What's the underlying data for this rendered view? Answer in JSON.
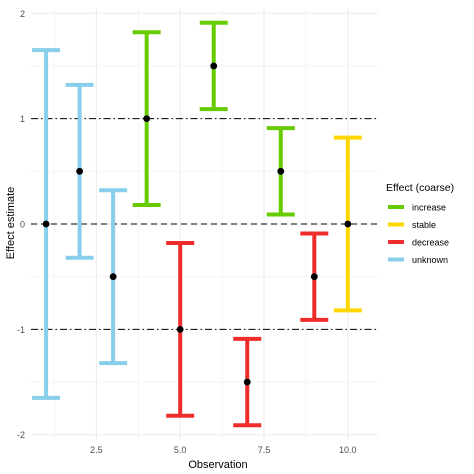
{
  "chart_data": {
    "type": "errorbar",
    "xlabel": "Observation",
    "ylabel": "Effect estimate",
    "xlim": [
      0.55,
      10.9
    ],
    "ylim": [
      -2.05,
      2.05
    ],
    "x_ticks": [
      2.5,
      5.0,
      7.5,
      10.0
    ],
    "x_tick_labels": [
      "2.5",
      "5.0",
      "7.5",
      "10.0"
    ],
    "y_ticks": [
      -2,
      -1,
      0,
      1,
      2
    ],
    "y_tick_labels": [
      "-2",
      "-1",
      "0",
      "1",
      "2"
    ],
    "grid": true,
    "reference_lines": [
      {
        "y": 0,
        "style": "dashed",
        "color": "#000000"
      },
      {
        "y": 1,
        "style": "dotdash",
        "color": "#000000"
      },
      {
        "y": -1,
        "style": "dotdash",
        "color": "#000000"
      }
    ],
    "legend": {
      "title": "Effect (coarse)",
      "position": "right",
      "entries": [
        {
          "label": "increase",
          "color": "#66cc00"
        },
        {
          "label": "stable",
          "color": "#ffd700"
        },
        {
          "label": "decrease",
          "color": "#ee2c2c"
        },
        {
          "label": "unknown",
          "color": "#87ceeb"
        }
      ]
    },
    "points": [
      {
        "x": 1,
        "y": 0.0,
        "lower": -1.65,
        "upper": 1.65,
        "category": "unknown"
      },
      {
        "x": 2,
        "y": 0.5,
        "lower": -0.32,
        "upper": 1.32,
        "category": "unknown"
      },
      {
        "x": 3,
        "y": -0.5,
        "lower": -1.32,
        "upper": 0.32,
        "category": "unknown"
      },
      {
        "x": 4,
        "y": 1.0,
        "lower": 0.18,
        "upper": 1.82,
        "category": "increase"
      },
      {
        "x": 5,
        "y": -1.0,
        "lower": -1.82,
        "upper": -0.18,
        "category": "decrease"
      },
      {
        "x": 6,
        "y": 1.5,
        "lower": 1.09,
        "upper": 1.91,
        "category": "increase"
      },
      {
        "x": 7,
        "y": -1.5,
        "lower": -1.91,
        "upper": -1.09,
        "category": "decrease"
      },
      {
        "x": 8,
        "y": 0.5,
        "lower": 0.09,
        "upper": 0.91,
        "category": "increase"
      },
      {
        "x": 9,
        "y": -0.5,
        "lower": -0.91,
        "upper": -0.09,
        "category": "decrease"
      },
      {
        "x": 10,
        "y": 0.0,
        "lower": -0.82,
        "upper": 0.82,
        "category": "stable"
      }
    ]
  }
}
